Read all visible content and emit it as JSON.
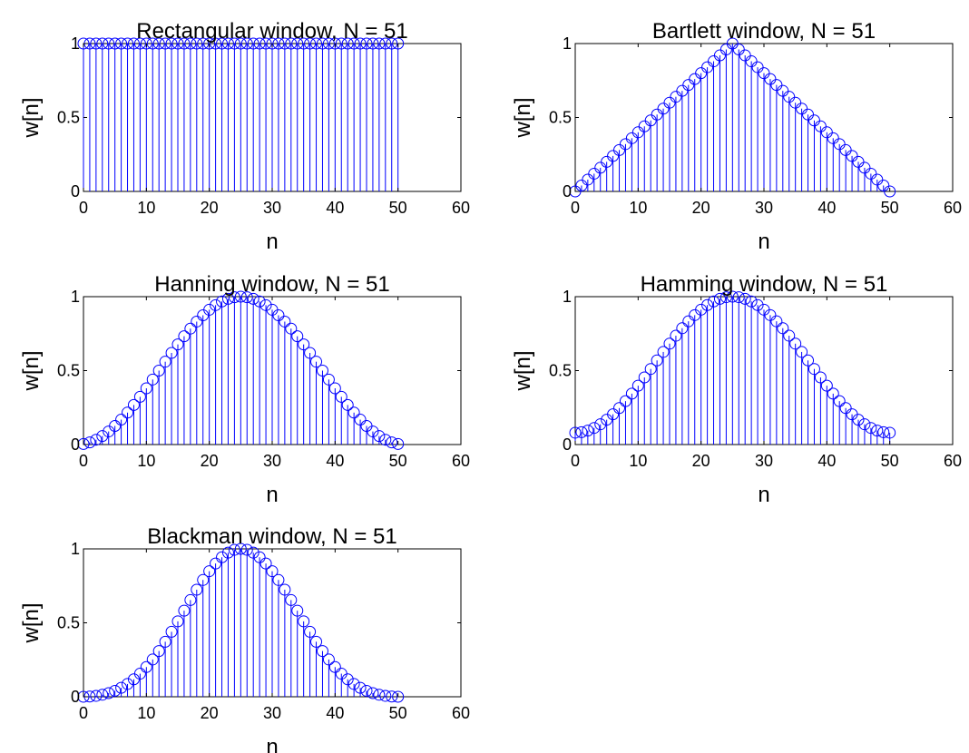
{
  "figure": {
    "marker_color": "#0000ff",
    "axis_color": "#000000",
    "background": "#ffffff"
  },
  "chart_data": [
    {
      "type": "stem",
      "window": "rectangular",
      "title": "Rectangular window, N = 51",
      "xlabel": "n",
      "ylabel": "w[n]",
      "xlim": [
        0,
        60
      ],
      "ylim": [
        0,
        1
      ],
      "xticks": [
        "0",
        "10",
        "20",
        "30",
        "40",
        "50",
        "60"
      ],
      "yticks": [
        "0",
        "0.5",
        "1"
      ],
      "N": 51,
      "grid": false
    },
    {
      "type": "stem",
      "window": "bartlett",
      "title": "Bartlett window, N = 51",
      "xlabel": "n",
      "ylabel": "w[n]",
      "xlim": [
        0,
        60
      ],
      "ylim": [
        0,
        1
      ],
      "xticks": [
        "0",
        "10",
        "20",
        "30",
        "40",
        "50",
        "60"
      ],
      "yticks": [
        "0",
        "0.5",
        "1"
      ],
      "N": 51,
      "grid": false
    },
    {
      "type": "stem",
      "window": "hanning",
      "title": "Hanning window, N = 51",
      "xlabel": "n",
      "ylabel": "w[n]",
      "xlim": [
        0,
        60
      ],
      "ylim": [
        0,
        1
      ],
      "xticks": [
        "0",
        "10",
        "20",
        "30",
        "40",
        "50",
        "60"
      ],
      "yticks": [
        "0",
        "0.5",
        "1"
      ],
      "N": 51,
      "grid": false
    },
    {
      "type": "stem",
      "window": "hamming",
      "title": "Hamming window, N = 51",
      "xlabel": "n",
      "ylabel": "w[n]",
      "xlim": [
        0,
        60
      ],
      "ylim": [
        0,
        1
      ],
      "xticks": [
        "0",
        "10",
        "20",
        "30",
        "40",
        "50",
        "60"
      ],
      "yticks": [
        "0",
        "0.5",
        "1"
      ],
      "N": 51,
      "grid": false
    },
    {
      "type": "stem",
      "window": "blackman",
      "title": "Blackman window, N = 51",
      "xlabel": "n",
      "ylabel": "w[n]",
      "xlim": [
        0,
        60
      ],
      "ylim": [
        0,
        1
      ],
      "xticks": [
        "0",
        "10",
        "20",
        "30",
        "40",
        "50",
        "60"
      ],
      "yticks": [
        "0",
        "0.5",
        "1"
      ],
      "N": 51,
      "grid": false
    }
  ]
}
